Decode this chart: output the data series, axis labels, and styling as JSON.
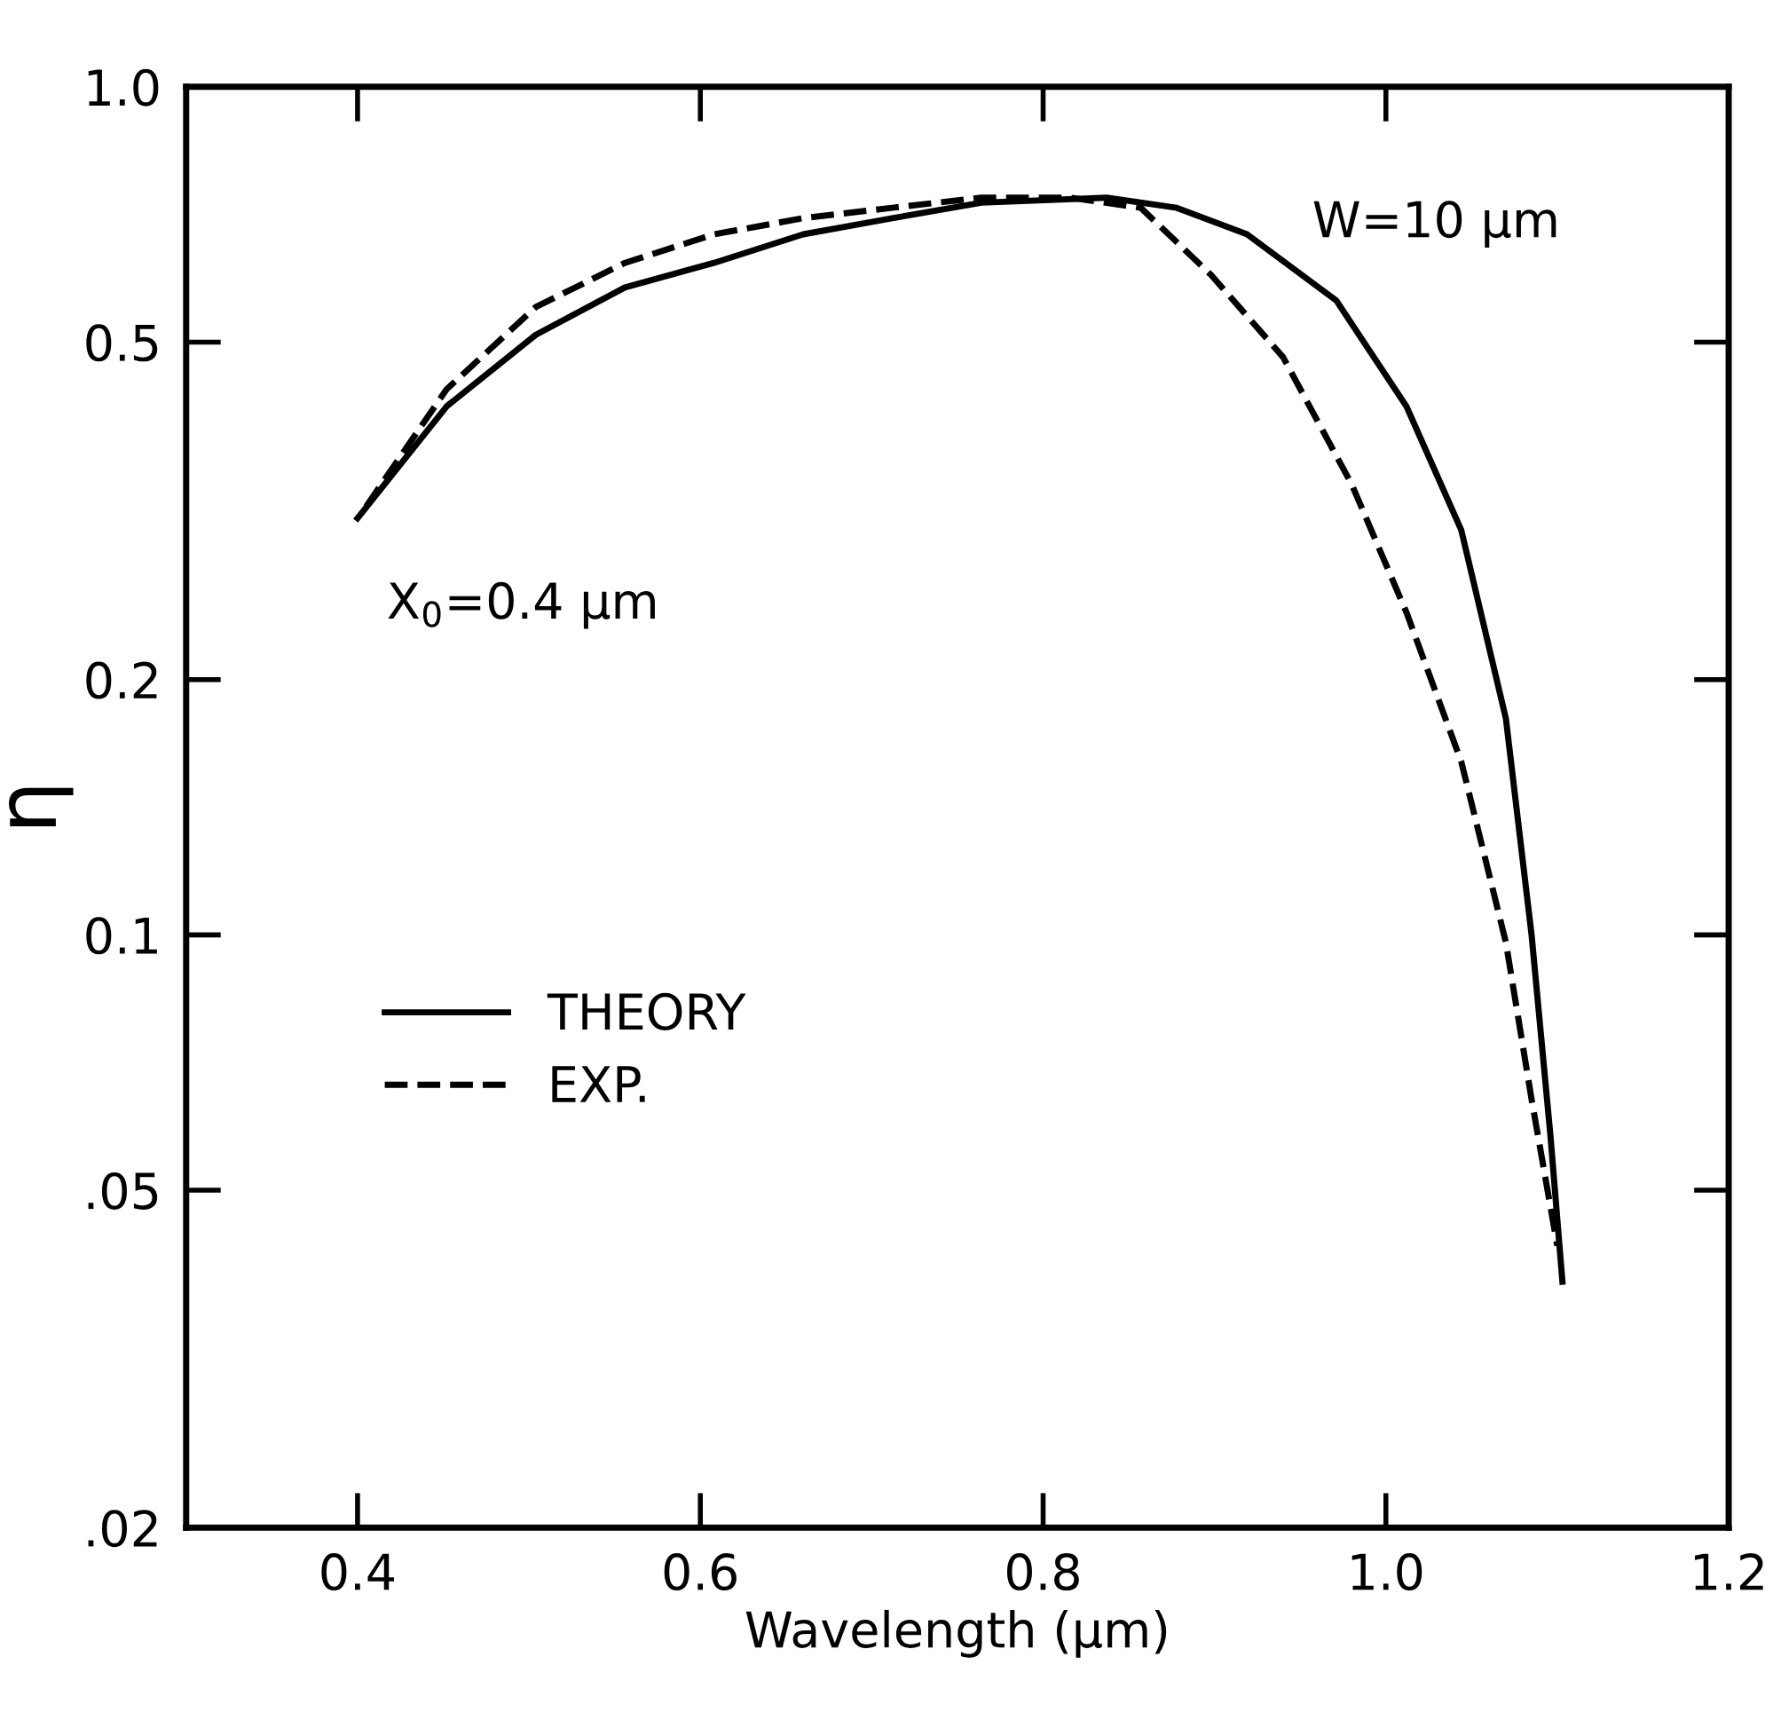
{
  "chart_data": {
    "type": "line",
    "xlabel": "Wavelength (μm)",
    "ylabel": "η",
    "log": "y",
    "xlim": [
      0.3,
      1.2
    ],
    "ylim": [
      0.02,
      1.0
    ],
    "xticks": [
      0.4,
      0.6,
      0.8,
      {
        "value": 1.0,
        "label": "1.0"
      },
      1.2
    ],
    "yticks": [
      {
        "value": 0.02,
        "label": ".02"
      },
      {
        "value": 0.05,
        "label": ".05"
      },
      0.1,
      0.2,
      0.5,
      {
        "value": 1.0,
        "label": "1.0"
      }
    ],
    "grid": false,
    "legend": "left",
    "series": [
      {
        "name": "THEORY",
        "color": "#000000",
        "line_style": "solid",
        "x": [
          0.4,
          0.452,
          0.504,
          0.556,
          0.608,
          0.66,
          0.712,
          0.764,
          0.837,
          0.878,
          0.919,
          0.971,
          1.012,
          1.044,
          1.07,
          1.085,
          1.096,
          1.103
        ],
        "values": [
          0.31,
          0.42,
          0.51,
          0.58,
          0.62,
          0.67,
          0.7,
          0.73,
          0.74,
          0.72,
          0.67,
          0.56,
          0.42,
          0.3,
          0.18,
          0.1,
          0.058,
          0.039
        ]
      },
      {
        "name": "EXP.",
        "color": "#000000",
        "line_style": "dashed",
        "x": [
          0.405,
          0.452,
          0.504,
          0.556,
          0.608,
          0.66,
          0.712,
          0.764,
          0.816,
          0.857,
          0.898,
          0.94,
          0.98,
          1.012,
          1.044,
          1.07,
          1.085,
          1.1
        ],
        "values": [
          0.32,
          0.44,
          0.55,
          0.62,
          0.67,
          0.7,
          0.72,
          0.74,
          0.74,
          0.72,
          0.6,
          0.48,
          0.34,
          0.24,
          0.16,
          0.098,
          0.064,
          0.043
        ]
      }
    ],
    "annotations": [
      "W=10 μm",
      "X$_{0}$=0.4 μm"
    ]
  }
}
